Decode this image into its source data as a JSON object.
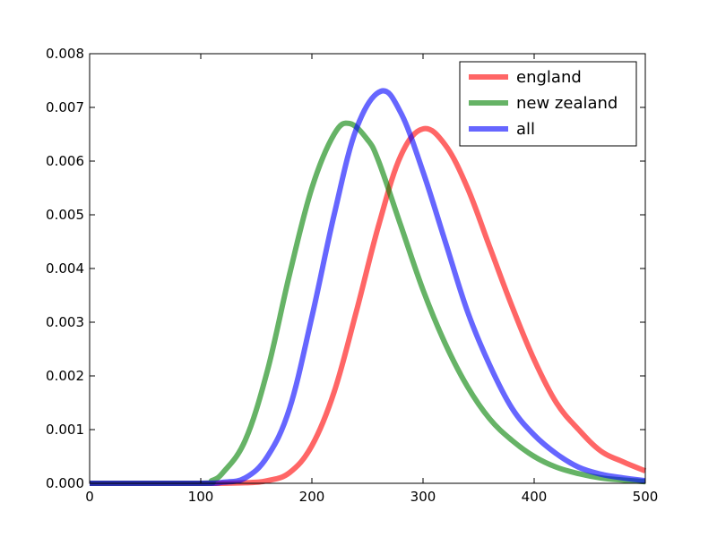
{
  "chart_data": {
    "type": "line",
    "title": "",
    "xlabel": "",
    "ylabel": "",
    "xlim": [
      0,
      500
    ],
    "ylim": [
      0,
      0.008
    ],
    "x_ticks": [
      0,
      100,
      200,
      300,
      400,
      500
    ],
    "x_tick_labels": [
      "0",
      "100",
      "200",
      "300",
      "400",
      "500"
    ],
    "y_ticks": [
      0,
      0.001,
      0.002,
      0.003,
      0.004,
      0.005,
      0.006,
      0.007,
      0.008
    ],
    "y_tick_labels": [
      "0.000",
      "0.001",
      "0.002",
      "0.003",
      "0.004",
      "0.005",
      "0.006",
      "0.007",
      "0.008"
    ],
    "grid": false,
    "legend_position": "top-right",
    "series": [
      {
        "name": "england",
        "color": "#ff0000",
        "x": [
          0,
          100,
          140,
          160,
          180,
          200,
          220,
          240,
          260,
          280,
          300,
          320,
          340,
          360,
          380,
          400,
          420,
          440,
          460,
          480,
          500
        ],
        "y": [
          0,
          0,
          1e-05,
          5e-05,
          0.0002,
          0.0007,
          0.0017,
          0.0032,
          0.0048,
          0.0061,
          0.0066,
          0.0063,
          0.0055,
          0.0044,
          0.0033,
          0.0023,
          0.0015,
          0.001,
          0.0006,
          0.0004,
          0.00023
        ]
      },
      {
        "name": "new zealand",
        "color": "#008000",
        "x": [
          0,
          100,
          110,
          120,
          140,
          160,
          180,
          200,
          220,
          234,
          250,
          260,
          280,
          300,
          320,
          340,
          360,
          380,
          400,
          420,
          440,
          460,
          480,
          500
        ],
        "y": [
          0,
          0,
          5e-05,
          0.0002,
          0.0008,
          0.0021,
          0.0039,
          0.0055,
          0.0065,
          0.0067,
          0.0064,
          0.006,
          0.0048,
          0.0036,
          0.0026,
          0.0018,
          0.0012,
          0.0008,
          0.0005,
          0.0003,
          0.00018,
          0.0001,
          6e-05,
          3e-05
        ]
      },
      {
        "name": "all",
        "color": "#0000ff",
        "x": [
          0,
          100,
          120,
          140,
          160,
          180,
          200,
          220,
          240,
          262,
          280,
          300,
          320,
          340,
          360,
          380,
          400,
          420,
          440,
          460,
          480,
          500
        ],
        "y": [
          0,
          0,
          2e-05,
          0.0001,
          0.0005,
          0.0014,
          0.0031,
          0.005,
          0.0066,
          0.0073,
          0.0069,
          0.0058,
          0.0045,
          0.0032,
          0.0022,
          0.0014,
          0.0009,
          0.00055,
          0.0003,
          0.00017,
          0.0001,
          5e-05
        ]
      }
    ]
  }
}
